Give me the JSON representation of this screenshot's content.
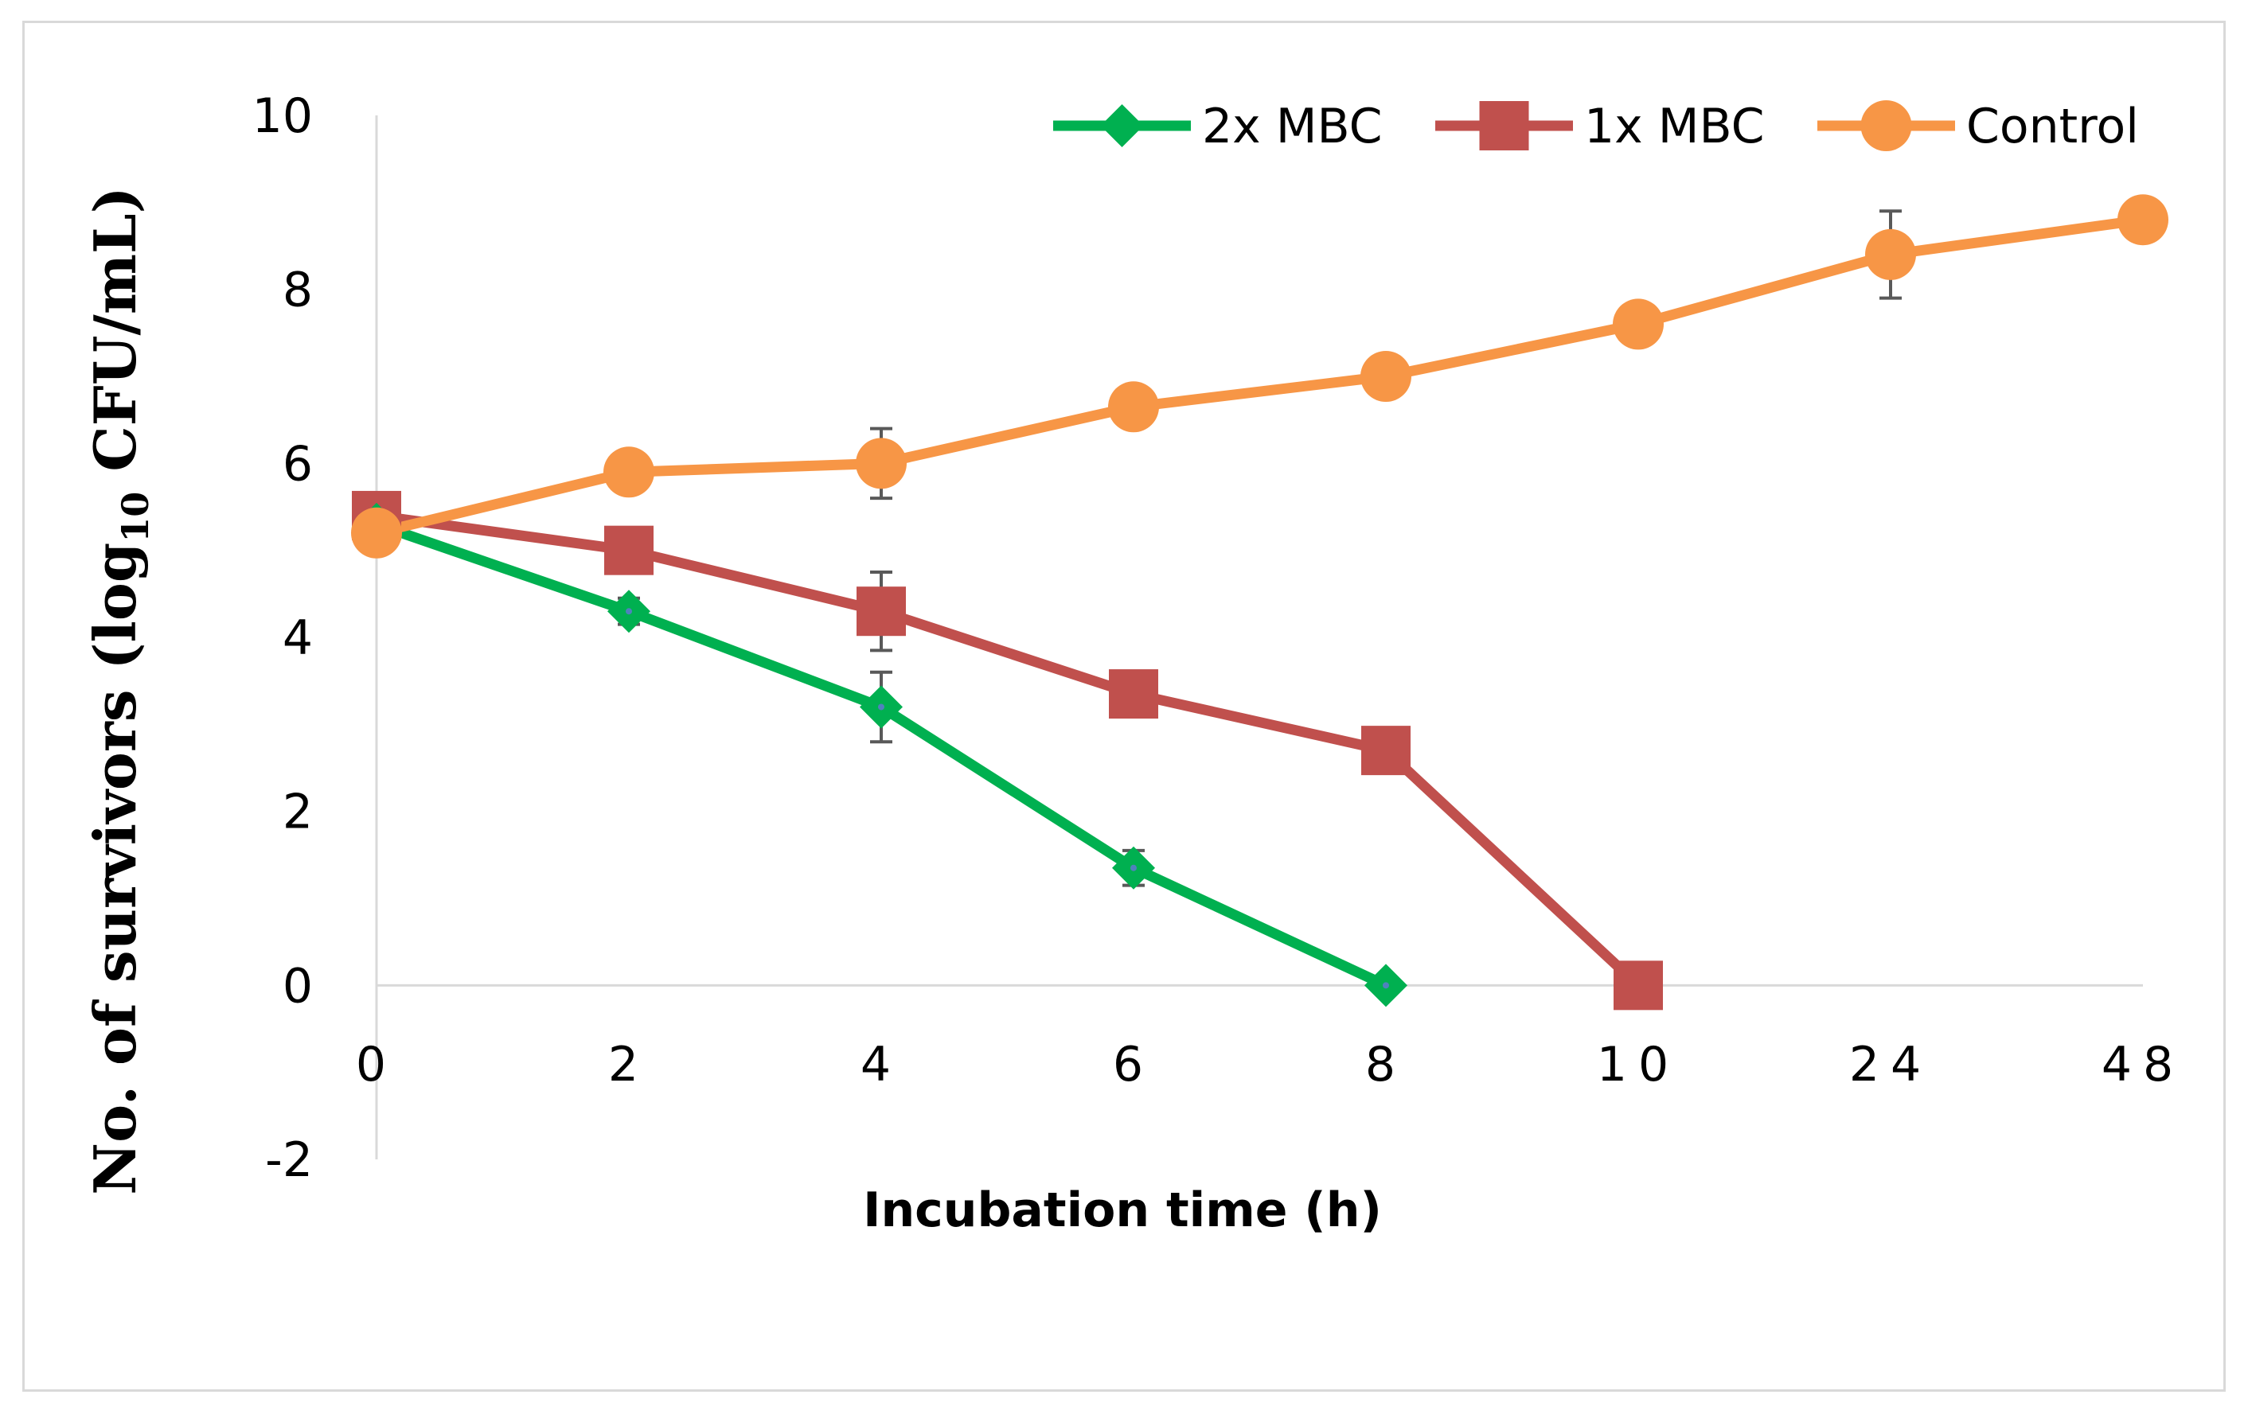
{
  "chart_data": {
    "type": "line",
    "title": "",
    "xlabel": "Incubation time (h)",
    "ylabel": {
      "prefix": "No. of survivors (log",
      "subscript": "10",
      "suffix": " CFU/mL)"
    },
    "categories": [
      "0",
      "2",
      "4",
      "6",
      "8",
      "10",
      "24",
      "48"
    ],
    "ylim": [
      -2,
      10
    ],
    "yticks": [
      "-2",
      "0",
      "2",
      "4",
      "6",
      "8",
      "10"
    ],
    "legend_position": "top-right",
    "grid": false,
    "series": [
      {
        "name": "2x MBC",
        "marker": "diamond",
        "color": "#00b050",
        "values": [
          5.3,
          4.3,
          3.2,
          1.35,
          0.0,
          null,
          null,
          null
        ],
        "errors": [
          0,
          0.15,
          0.4,
          0.2,
          0,
          null,
          null,
          null
        ]
      },
      {
        "name": "1x MBC",
        "marker": "square",
        "color": "#c0504d",
        "values": [
          5.4,
          5.0,
          4.3,
          3.35,
          2.7,
          0.0,
          null,
          null
        ],
        "errors": [
          0,
          0.25,
          0.45,
          0.1,
          0,
          0,
          null,
          null
        ]
      },
      {
        "name": "Control",
        "marker": "circle",
        "color": "#f79646",
        "values": [
          5.2,
          5.9,
          6.0,
          6.65,
          7.0,
          7.6,
          8.4,
          8.8
        ],
        "errors": [
          0,
          0.1,
          0.4,
          0.1,
          0.1,
          0.1,
          0.5,
          0
        ]
      }
    ]
  }
}
